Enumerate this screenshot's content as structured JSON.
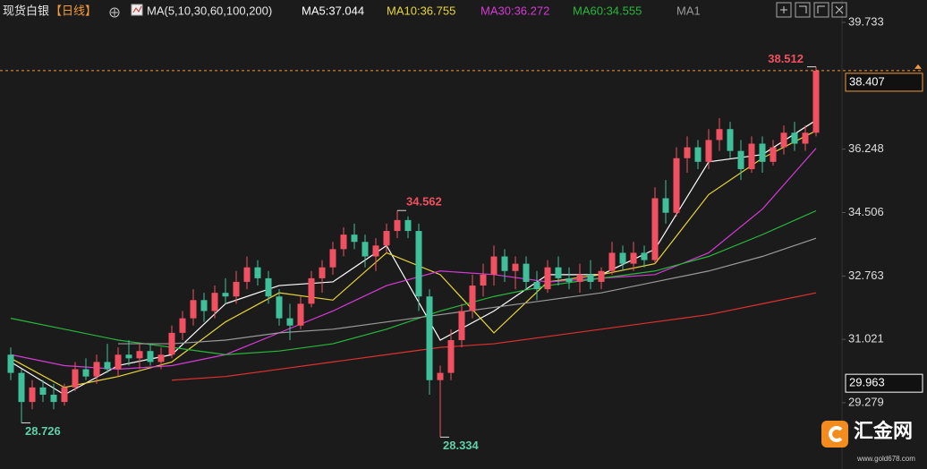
{
  "chart_data": {
    "type": "candlestick",
    "title": "现货白银",
    "period": "【日线】",
    "ma_caption": "MA(5,10,30,60,100,200)",
    "up_color": "#f0505f",
    "down_color": "#3fbf9a",
    "ylim": [
      27.458,
      40.348
    ],
    "yticks": [
      39.733,
      36.248,
      34.506,
      32.763,
      31.021,
      29.279
    ],
    "marker_price": 29.963,
    "candles": [
      [
        30.6,
        30.8,
        29.9,
        30.1
      ],
      [
        30.1,
        30.2,
        28.726,
        29.3
      ],
      [
        29.3,
        29.9,
        29.1,
        29.7
      ],
      [
        29.7,
        29.9,
        29.3,
        29.5
      ],
      [
        29.5,
        29.8,
        29.1,
        29.3
      ],
      [
        29.3,
        29.8,
        29.2,
        29.7
      ],
      [
        29.7,
        30.4,
        29.6,
        30.2
      ],
      [
        30.2,
        30.5,
        29.9,
        30.0
      ],
      [
        30.0,
        30.6,
        29.8,
        30.4
      ],
      [
        30.4,
        30.9,
        30.1,
        30.2
      ],
      [
        30.2,
        30.8,
        30.0,
        30.6
      ],
      [
        30.6,
        31.0,
        30.3,
        30.5
      ],
      [
        30.5,
        30.9,
        30.2,
        30.7
      ],
      [
        30.7,
        30.9,
        30.3,
        30.4
      ],
      [
        30.4,
        30.8,
        30.2,
        30.6
      ],
      [
        30.6,
        31.4,
        30.5,
        31.2
      ],
      [
        31.2,
        31.8,
        31.0,
        31.6
      ],
      [
        31.6,
        32.4,
        31.4,
        32.1
      ],
      [
        32.1,
        32.3,
        31.5,
        31.8
      ],
      [
        31.8,
        32.5,
        31.6,
        32.3
      ],
      [
        32.3,
        32.7,
        32.0,
        32.2
      ],
      [
        32.2,
        32.9,
        32.0,
        32.6
      ],
      [
        32.6,
        33.3,
        32.4,
        33.0
      ],
      [
        33.0,
        33.2,
        32.5,
        32.7
      ],
      [
        32.7,
        32.9,
        32.0,
        32.2
      ],
      [
        32.2,
        32.4,
        31.4,
        31.6
      ],
      [
        31.6,
        32.0,
        31.0,
        31.4
      ],
      [
        31.4,
        32.2,
        31.3,
        32.0
      ],
      [
        32.0,
        32.9,
        31.9,
        32.7
      ],
      [
        32.7,
        33.2,
        32.3,
        33.0
      ],
      [
        33.0,
        33.7,
        32.8,
        33.5
      ],
      [
        33.5,
        34.1,
        33.3,
        33.9
      ],
      [
        33.9,
        34.2,
        33.5,
        33.7
      ],
      [
        33.7,
        33.9,
        33.0,
        33.3
      ],
      [
        33.3,
        33.8,
        32.9,
        33.6
      ],
      [
        33.6,
        34.2,
        33.4,
        34.0
      ],
      [
        34.0,
        34.562,
        33.8,
        34.3
      ],
      [
        34.3,
        34.4,
        33.8,
        34.0
      ],
      [
        34.0,
        34.2,
        31.8,
        32.2
      ],
      [
        32.2,
        32.4,
        29.5,
        29.9
      ],
      [
        29.9,
        30.3,
        28.334,
        30.1
      ],
      [
        30.1,
        31.3,
        29.9,
        31.0
      ],
      [
        31.0,
        32.0,
        30.8,
        31.8
      ],
      [
        31.8,
        32.8,
        31.6,
        32.5
      ],
      [
        32.5,
        33.1,
        32.2,
        32.8
      ],
      [
        32.8,
        33.6,
        32.5,
        33.3
      ],
      [
        33.3,
        33.5,
        32.6,
        32.9
      ],
      [
        32.9,
        33.3,
        32.4,
        33.1
      ],
      [
        33.1,
        33.3,
        32.4,
        32.6
      ],
      [
        32.6,
        32.9,
        32.1,
        32.4
      ],
      [
        32.4,
        33.2,
        32.3,
        33.0
      ],
      [
        33.0,
        33.3,
        32.5,
        32.7
      ],
      [
        32.7,
        33.0,
        32.4,
        32.6
      ],
      [
        32.6,
        33.1,
        32.3,
        32.8
      ],
      [
        32.8,
        33.2,
        32.4,
        32.6
      ],
      [
        32.6,
        33.0,
        32.4,
        32.9
      ],
      [
        32.9,
        33.7,
        32.8,
        33.4
      ],
      [
        33.4,
        33.6,
        32.9,
        33.1
      ],
      [
        33.1,
        33.7,
        32.9,
        33.4
      ],
      [
        33.4,
        33.6,
        33.0,
        33.2
      ],
      [
        33.2,
        35.2,
        33.1,
        34.9
      ],
      [
        34.9,
        35.4,
        34.2,
        34.5
      ],
      [
        34.5,
        36.3,
        34.4,
        36.0
      ],
      [
        36.0,
        36.6,
        35.6,
        36.3
      ],
      [
        36.3,
        36.5,
        35.7,
        35.9
      ],
      [
        35.9,
        36.8,
        35.7,
        36.5
      ],
      [
        36.5,
        37.1,
        36.2,
        36.8
      ],
      [
        36.8,
        37.0,
        36.0,
        36.2
      ],
      [
        36.2,
        36.5,
        35.4,
        35.7
      ],
      [
        35.7,
        36.6,
        35.6,
        36.4
      ],
      [
        36.4,
        36.6,
        35.6,
        35.9
      ],
      [
        35.9,
        36.5,
        35.8,
        36.3
      ],
      [
        36.3,
        36.9,
        36.1,
        36.7
      ],
      [
        36.7,
        37.0,
        36.2,
        36.4
      ],
      [
        36.4,
        36.9,
        36.2,
        36.7
      ],
      [
        36.7,
        38.512,
        36.6,
        38.407
      ]
    ],
    "lines": [
      {
        "label": "MA5:37.044",
        "color": "#ffffff",
        "x": [
          0,
          5,
          10,
          15,
          20,
          25,
          30,
          35,
          40,
          45,
          50,
          55,
          60,
          65,
          70,
          75
        ],
        "values": [
          30.4,
          29.5,
          30.3,
          30.6,
          32.0,
          32.5,
          32.6,
          33.6,
          31.0,
          31.8,
          32.8,
          32.8,
          33.5,
          35.9,
          36.1,
          37.044
        ]
      },
      {
        "label": "MA10:36.755",
        "color": "#e8d53a",
        "x": [
          0,
          5,
          10,
          15,
          20,
          25,
          30,
          35,
          40,
          45,
          50,
          55,
          60,
          65,
          70,
          75
        ],
        "values": [
          30.5,
          29.7,
          30.0,
          30.4,
          31.5,
          32.3,
          32.1,
          33.4,
          32.8,
          31.2,
          32.6,
          32.8,
          33.1,
          35.0,
          36.0,
          36.755
        ]
      },
      {
        "label": "MA30:36.272",
        "color": "#d63ad6",
        "x": [
          0,
          5,
          10,
          15,
          20,
          25,
          30,
          35,
          40,
          45,
          50,
          55,
          60,
          65,
          70,
          75
        ],
        "values": [
          30.6,
          30.3,
          30.2,
          30.3,
          30.6,
          31.2,
          31.8,
          32.5,
          32.9,
          32.8,
          32.6,
          32.7,
          32.8,
          33.4,
          34.6,
          36.272
        ]
      },
      {
        "label": "MA60:34.555",
        "color": "#27b83a",
        "x": [
          0,
          5,
          10,
          15,
          20,
          25,
          30,
          35,
          40,
          45,
          50,
          55,
          60,
          65,
          70,
          75
        ],
        "values": [
          31.6,
          31.3,
          31.0,
          30.8,
          30.6,
          30.7,
          30.9,
          31.3,
          31.8,
          32.2,
          32.5,
          32.7,
          32.9,
          33.3,
          33.9,
          34.555
        ]
      },
      {
        "label": "MA1",
        "color": "#9a9a9a",
        "x": [
          10,
          15,
          20,
          25,
          30,
          35,
          40,
          45,
          50,
          55,
          60,
          65,
          70,
          75
        ],
        "values": [
          30.9,
          30.9,
          31.0,
          31.2,
          31.3,
          31.5,
          31.7,
          31.9,
          32.1,
          32.3,
          32.6,
          32.9,
          33.3,
          33.8
        ]
      },
      {
        "color": "#e03030",
        "x": [
          15,
          20,
          25,
          30,
          35,
          40,
          45,
          50,
          55,
          60,
          65,
          70,
          75
        ],
        "values": [
          29.9,
          30.0,
          30.2,
          30.4,
          30.6,
          30.8,
          30.9,
          31.1,
          31.3,
          31.5,
          31.7,
          32.0,
          32.3
        ]
      }
    ]
  },
  "logo": {
    "name": "汇金网",
    "url": "www.gold678.com"
  }
}
